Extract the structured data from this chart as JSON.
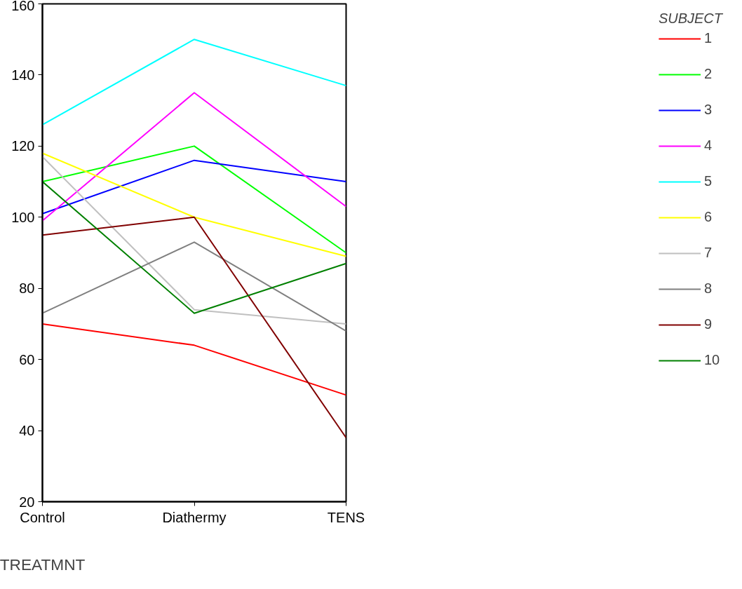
{
  "chart_data": {
    "type": "line",
    "xlabel": "TREATMNT",
    "legend_title": "SUBJECT",
    "categories": [
      "Control",
      "Diathermy",
      "TENS"
    ],
    "ylim": [
      20,
      160
    ],
    "yticks": [
      20,
      40,
      60,
      80,
      100,
      120,
      140,
      160
    ],
    "grid": false,
    "legend": "right",
    "marker": "none",
    "line_style": "solid",
    "series": [
      {
        "name": "1",
        "color": "#ff0000",
        "values": [
          70,
          64,
          50
        ]
      },
      {
        "name": "2",
        "color": "#00ff00",
        "values": [
          110,
          120,
          90
        ]
      },
      {
        "name": "3",
        "color": "#0000ff",
        "values": [
          101,
          116,
          110
        ]
      },
      {
        "name": "4",
        "color": "#ff00ff",
        "values": [
          99,
          135,
          103
        ]
      },
      {
        "name": "5",
        "color": "#00ffff",
        "values": [
          126,
          150,
          137
        ]
      },
      {
        "name": "6",
        "color": "#ffff00",
        "values": [
          118,
          100,
          89
        ]
      },
      {
        "name": "7",
        "color": "#c0c0c0",
        "values": [
          117,
          74,
          70
        ]
      },
      {
        "name": "8",
        "color": "#808080",
        "values": [
          73,
          93,
          68
        ]
      },
      {
        "name": "9",
        "color": "#800000",
        "values": [
          95,
          100,
          38
        ]
      },
      {
        "name": "10",
        "color": "#008000",
        "values": [
          110,
          73,
          87
        ]
      }
    ]
  }
}
